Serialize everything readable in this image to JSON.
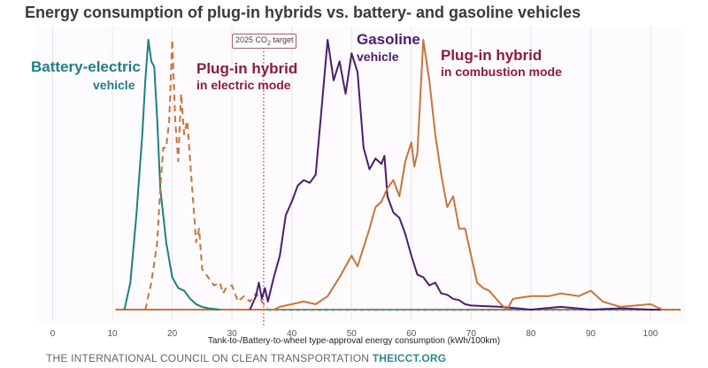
{
  "chart_data": {
    "type": "line",
    "title": "Energy consumption of plug-in hybrids vs. battery- and gasoline vehicles",
    "xlabel": "Tank-to-/Battery-to-wheel type-approval energy consumption (kWh/100km)",
    "ylabel": "",
    "xlim": [
      0,
      105
    ],
    "ylim": [
      0,
      100
    ],
    "xticks": [
      0,
      10,
      20,
      30,
      40,
      50,
      60,
      70,
      80,
      90,
      100
    ],
    "grid": "vertical",
    "annotation": {
      "label": "2025 CO",
      "sub": "2",
      "suffix": " target",
      "x": 35.3
    },
    "series": [
      {
        "name": "Battery-electric",
        "name2": "vehicle",
        "color": "#1f7f86",
        "dashed": false,
        "x": [
          12,
          13,
          14,
          15,
          15.5,
          16,
          16.5,
          17,
          17.5,
          18,
          19,
          20,
          21,
          22,
          23,
          24,
          25,
          26,
          28
        ],
        "y": [
          0,
          10,
          35,
          65,
          85,
          100,
          92,
          90,
          70,
          45,
          25,
          12,
          8,
          7,
          4,
          2,
          1,
          0.5,
          0
        ]
      },
      {
        "name": "Plug-in hybrid",
        "name2": "in electric mode",
        "color": "#c8753a",
        "label_color": "#8b1d3b",
        "dashed": true,
        "x": [
          15.5,
          16.5,
          17.5,
          18,
          18.5,
          19,
          19.5,
          20,
          20.5,
          21,
          21.5,
          22,
          22.5,
          23,
          24,
          24.5,
          25,
          26,
          27,
          28,
          28.5,
          29,
          30,
          31,
          32,
          33,
          34,
          35,
          36
        ],
        "y": [
          0,
          10,
          25,
          45,
          60,
          60,
          70,
          100,
          70,
          55,
          80,
          65,
          70,
          55,
          25,
          30,
          15,
          12,
          9,
          10,
          6,
          8,
          9,
          3,
          5,
          3,
          6,
          3,
          0
        ]
      },
      {
        "name": "Gasoline",
        "name2": "vehicle",
        "color": "#4b1d6e",
        "dashed": false,
        "x": [
          33,
          34,
          34.5,
          35,
          35.5,
          36,
          37,
          38,
          39,
          40,
          41,
          42,
          43,
          44,
          45,
          46,
          47,
          48,
          49,
          50,
          51,
          52,
          53,
          54,
          55,
          55.5,
          56,
          57,
          58,
          59,
          60,
          61,
          62,
          63,
          64,
          65,
          66,
          67,
          68,
          69,
          70,
          75,
          80,
          85,
          90,
          95,
          100,
          105
        ],
        "y": [
          0,
          5,
          10,
          4,
          8,
          3,
          12,
          20,
          35,
          40,
          46,
          48,
          47,
          50,
          75,
          100,
          85,
          92,
          80,
          95,
          88,
          60,
          52,
          56,
          54,
          57,
          42,
          36,
          34,
          28,
          20,
          13,
          12,
          9,
          10,
          6,
          5.5,
          4,
          3.5,
          2,
          1.5,
          1,
          0,
          1,
          0,
          0.5,
          0,
          0
        ]
      },
      {
        "name": "Plug-in hybrid",
        "name2": "in combustion mode",
        "color": "#c8753a",
        "label_color": "#8b1d3b",
        "dashed": false,
        "x": [
          37,
          38,
          40,
          42,
          44,
          46,
          48,
          50,
          51,
          53,
          54,
          55,
          56,
          57,
          58,
          59,
          60,
          60.5,
          61,
          62,
          63,
          64,
          65,
          66,
          67,
          68,
          69,
          70,
          71,
          72,
          73,
          75,
          76,
          77,
          80,
          83,
          85,
          88,
          90,
          92,
          95,
          100,
          102,
          105
        ],
        "y": [
          0,
          1,
          2,
          3,
          2,
          5,
          12,
          20,
          16,
          30,
          38,
          40,
          45,
          48,
          42,
          55,
          62,
          53,
          58,
          100,
          85,
          65,
          50,
          38,
          42,
          30,
          30,
          20,
          10,
          8,
          7,
          2,
          0,
          4,
          5,
          5,
          6,
          5,
          7,
          3,
          1,
          2,
          0,
          0
        ]
      }
    ]
  },
  "footer": {
    "org": "THE INTERNATIONAL COUNCIL ON CLEAN TRANSPORTATION",
    "site": "THEICCT.ORG"
  }
}
